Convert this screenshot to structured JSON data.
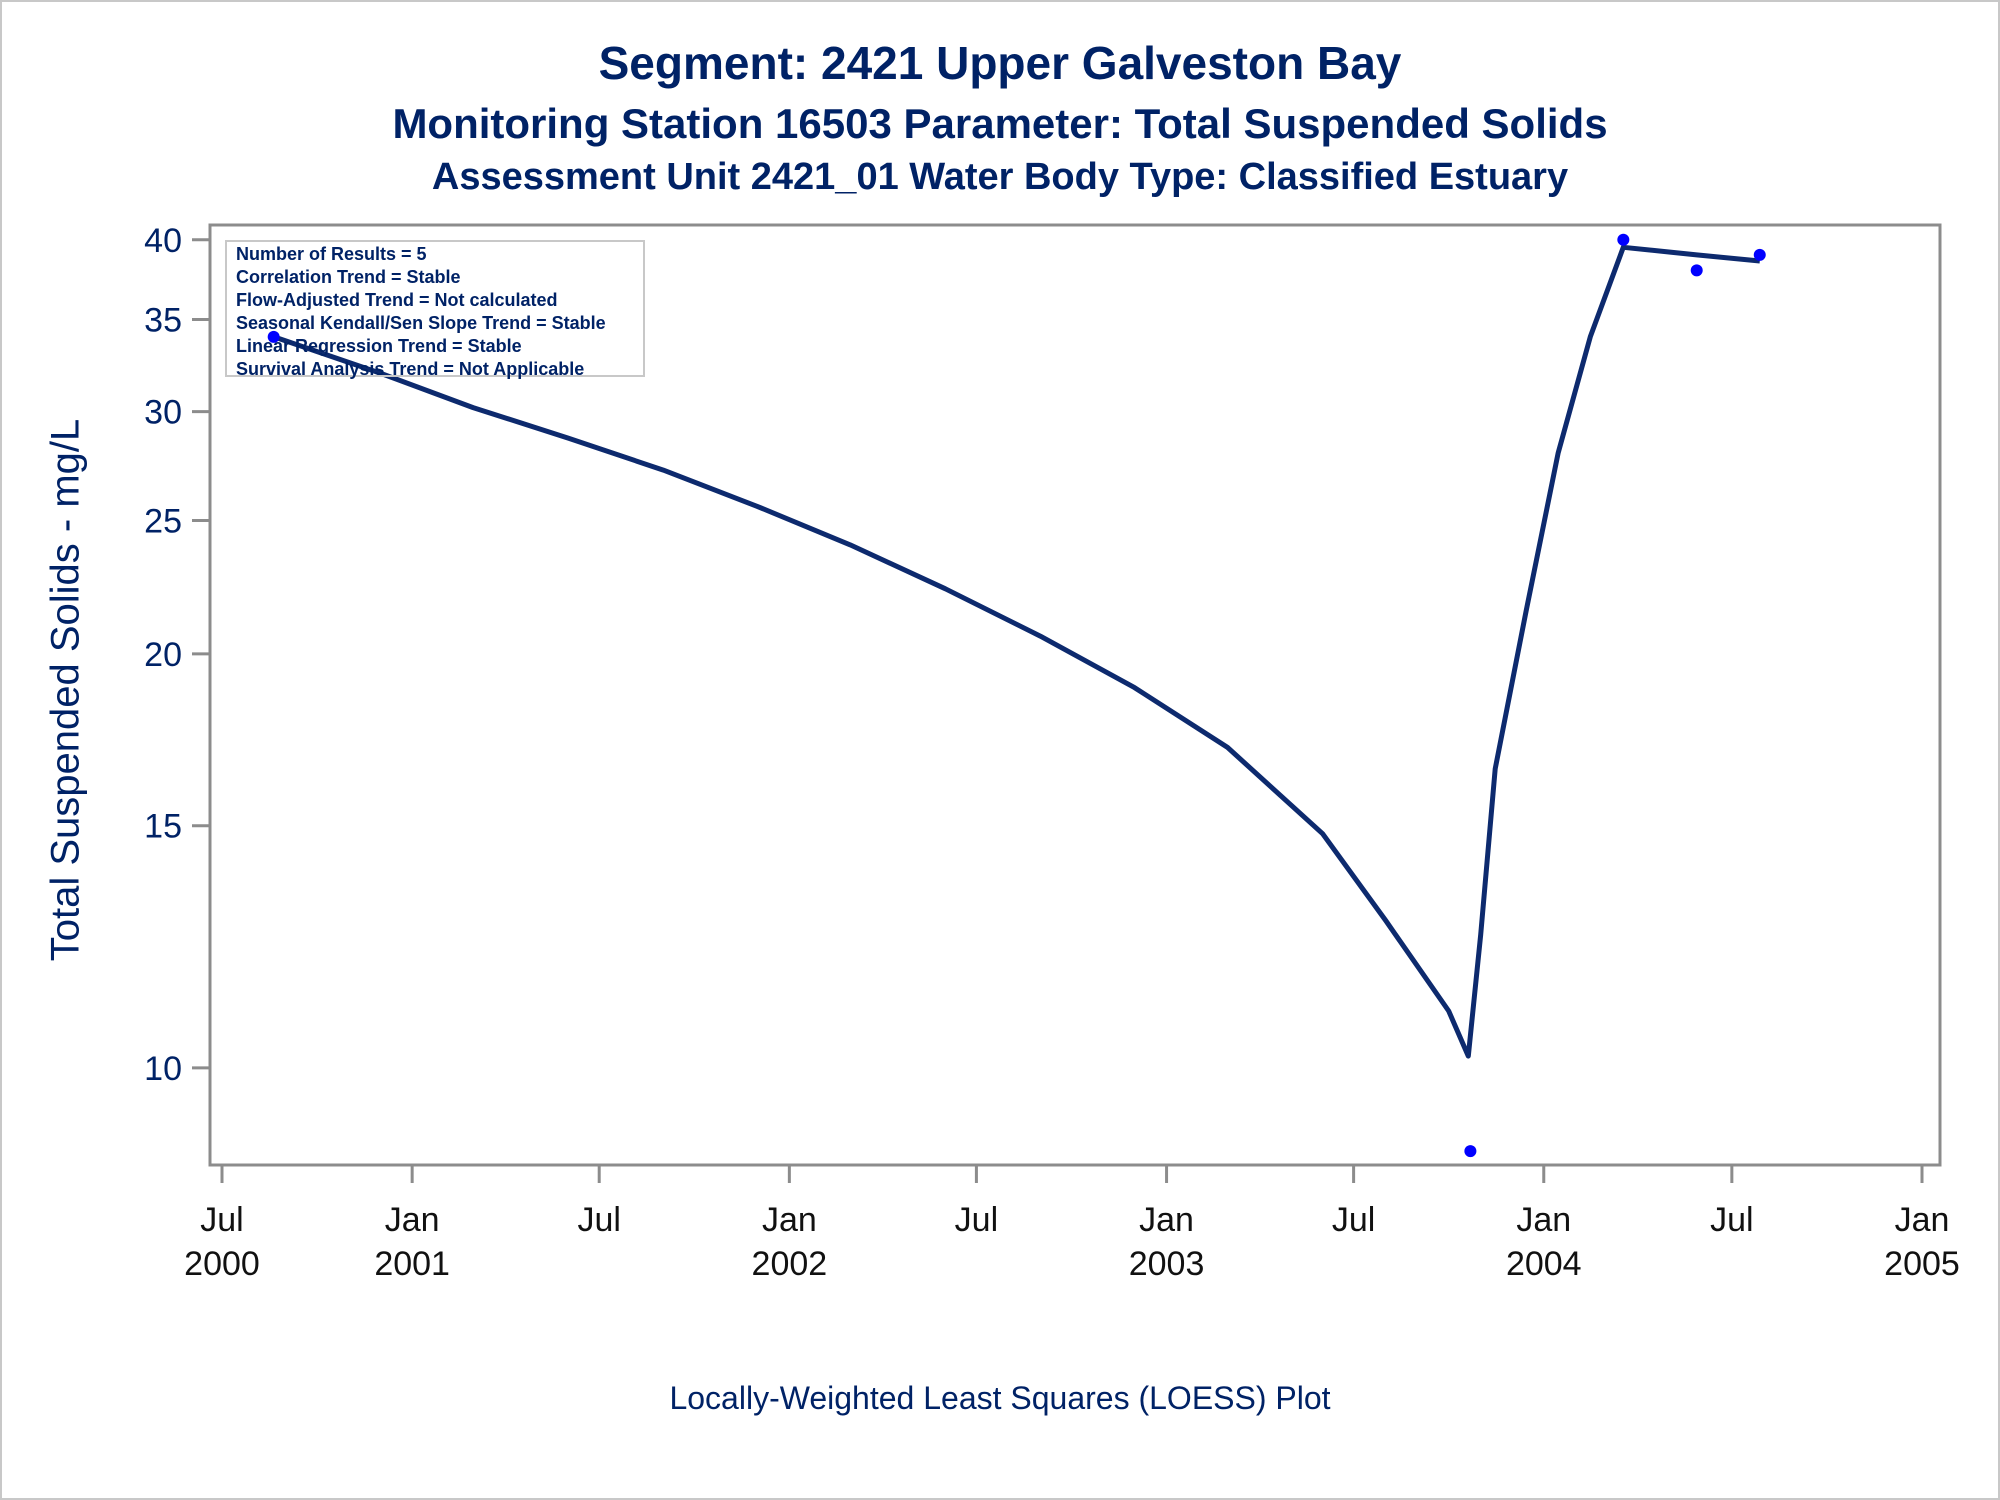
{
  "titles": {
    "line1": "Segment: 2421  Upper Galveston Bay",
    "line2": "Monitoring Station 16503 Parameter: Total Suspended Solids",
    "line3": "Assessment Unit 2421_01   Water Body Type: Classified Estuary"
  },
  "stats_box": [
    "Number of Results = 5",
    "Correlation Trend = Stable",
    "Flow-Adjusted Trend = Not calculated",
    "Seasonal Kendall/Sen Slope Trend = Stable",
    "Linear Regression Trend = Stable",
    "Survival Analysis Trend = Not Applicable"
  ],
  "footnote": "Locally-Weighted Least Squares (LOESS) Plot",
  "colors": {
    "text": "#002266",
    "line": "#0d2a6e",
    "points": "#0000ff",
    "axis": "#8c8c8c"
  },
  "chart_data": {
    "type": "line",
    "title": "Segment: 2421  Upper Galveston Bay",
    "xlabel": "",
    "ylabel": "Total Suspended Solids - mg/L",
    "y_scale": "log",
    "ylim": [
      8.5,
      41
    ],
    "y_ticks": [
      10,
      15,
      20,
      25,
      30,
      35,
      40
    ],
    "xlim": [
      "2000-07-01",
      "2005-01-01"
    ],
    "x_ticks": [
      {
        "date": "2000-07-01",
        "label": [
          "Jul",
          "2000"
        ]
      },
      {
        "date": "2001-01-01",
        "label": [
          "Jan",
          "2001"
        ]
      },
      {
        "date": "2001-07-01",
        "label": [
          "Jul",
          ""
        ]
      },
      {
        "date": "2002-01-01",
        "label": [
          "Jan",
          "2002"
        ]
      },
      {
        "date": "2002-07-01",
        "label": [
          "Jul",
          ""
        ]
      },
      {
        "date": "2003-01-01",
        "label": [
          "Jan",
          "2003"
        ]
      },
      {
        "date": "2003-07-01",
        "label": [
          "Jul",
          ""
        ]
      },
      {
        "date": "2004-01-01",
        "label": [
          "Jan",
          "2004"
        ]
      },
      {
        "date": "2004-07-01",
        "label": [
          "Jul",
          ""
        ]
      },
      {
        "date": "2005-01-01",
        "label": [
          "Jan",
          "2005"
        ]
      }
    ],
    "series": [
      {
        "kind": "scatter",
        "points": [
          {
            "x": "2000-08-20",
            "y": 34
          },
          {
            "x": "2003-10-22",
            "y": 8.7
          },
          {
            "x": "2004-03-18",
            "y": 40
          },
          {
            "x": "2004-05-28",
            "y": 38
          },
          {
            "x": "2004-07-28",
            "y": 39
          }
        ]
      },
      {
        "kind": "loess",
        "points": [
          {
            "x": "2000-08-20",
            "y": 34
          },
          {
            "x": "2000-12-01",
            "y": 32
          },
          {
            "x": "2001-03-01",
            "y": 30.2
          },
          {
            "x": "2001-06-01",
            "y": 28.7
          },
          {
            "x": "2001-09-01",
            "y": 27.2
          },
          {
            "x": "2001-12-01",
            "y": 25.6
          },
          {
            "x": "2002-03-01",
            "y": 24.0
          },
          {
            "x": "2002-06-01",
            "y": 22.3
          },
          {
            "x": "2002-09-01",
            "y": 20.6
          },
          {
            "x": "2002-12-01",
            "y": 18.9
          },
          {
            "x": "2003-03-01",
            "y": 17.1
          },
          {
            "x": "2003-06-01",
            "y": 14.8
          },
          {
            "x": "2003-08-01",
            "y": 12.8
          },
          {
            "x": "2003-10-01",
            "y": 11.0
          },
          {
            "x": "2003-10-20",
            "y": 10.2
          },
          {
            "x": "2003-11-01",
            "y": 12.5
          },
          {
            "x": "2003-11-15",
            "y": 16.5
          },
          {
            "x": "2003-12-15",
            "y": 21.5
          },
          {
            "x": "2004-01-15",
            "y": 28
          },
          {
            "x": "2004-02-15",
            "y": 34
          },
          {
            "x": "2004-03-18",
            "y": 39.5
          },
          {
            "x": "2004-05-28",
            "y": 39.0
          },
          {
            "x": "2004-07-28",
            "y": 38.6
          }
        ]
      }
    ]
  }
}
